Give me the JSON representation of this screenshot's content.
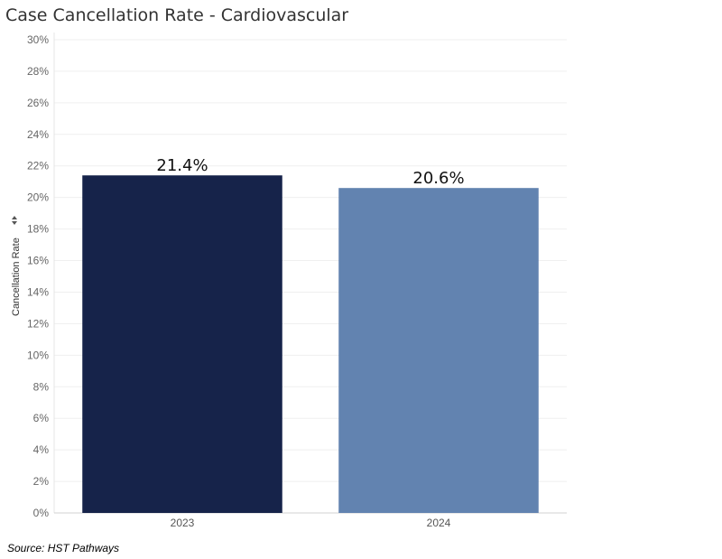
{
  "chart_data": {
    "type": "bar",
    "title": "Case Cancellation Rate - Cardiovascular",
    "xlabel": "",
    "ylabel": "Cancellation Rate",
    "categories": [
      "2023",
      "2024"
    ],
    "values": [
      21.4,
      20.6
    ],
    "data_labels": [
      "21.4%",
      "20.6%"
    ],
    "colors": [
      "#16234a",
      "#6283b0"
    ],
    "ylim": [
      0,
      30
    ],
    "y_ticks": [
      0,
      2,
      4,
      6,
      8,
      10,
      12,
      14,
      16,
      18,
      20,
      22,
      24,
      26,
      28,
      30
    ],
    "y_tick_labels": [
      "0%",
      "2%",
      "4%",
      "6%",
      "8%",
      "10%",
      "12%",
      "14%",
      "16%",
      "18%",
      "20%",
      "22%",
      "24%",
      "26%",
      "28%",
      "30%"
    ],
    "grid": true,
    "source": "Source: HST Pathways"
  }
}
